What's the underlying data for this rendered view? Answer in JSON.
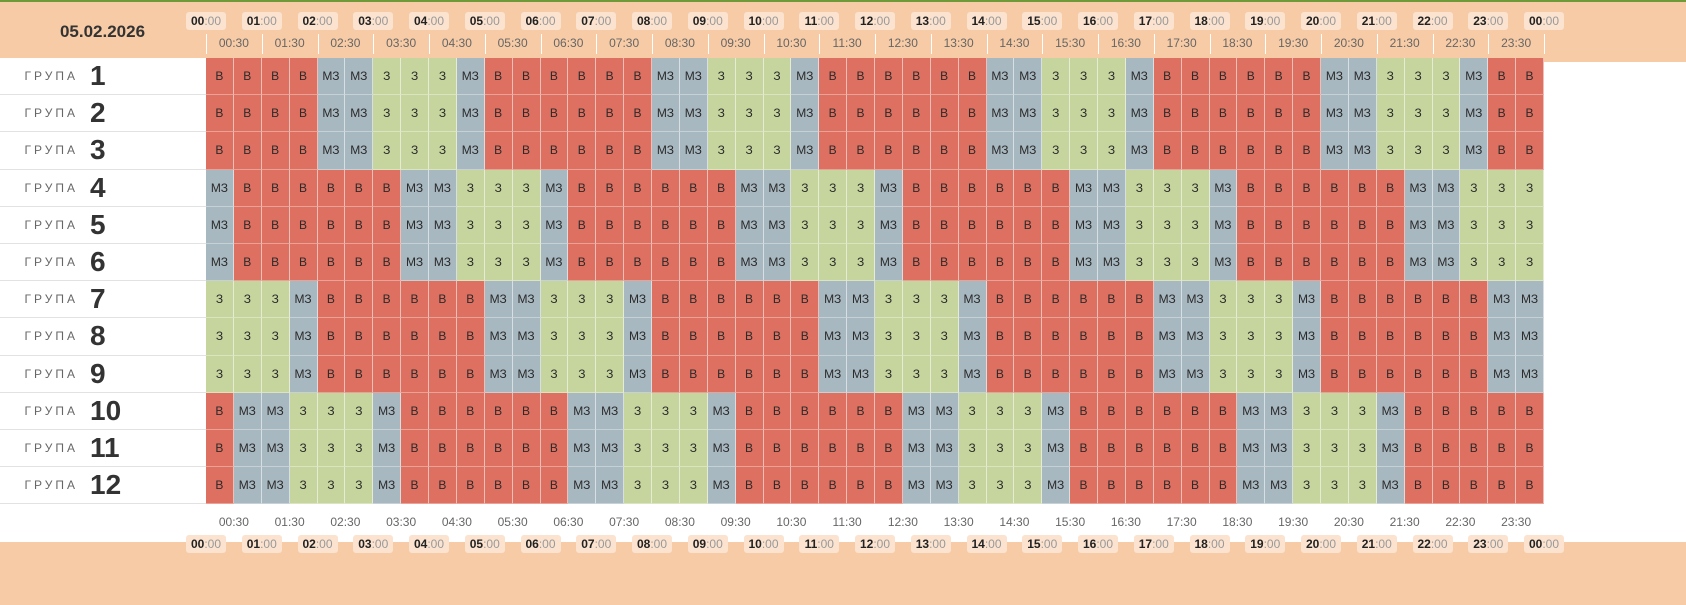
{
  "date": "05.02.2026",
  "hours": [
    "00",
    "01",
    "02",
    "03",
    "04",
    "05",
    "06",
    "07",
    "08",
    "09",
    "10",
    "11",
    "12",
    "13",
    "14",
    "15",
    "16",
    "17",
    "18",
    "19",
    "20",
    "21",
    "22",
    "23",
    "00"
  ],
  "hour_suffix": ":00",
  "half_suffix": ":30",
  "group_word": "ГРУПА",
  "status_labels": {
    "V": "В",
    "MZ": "МЗ",
    "Z": "З"
  },
  "colors": {
    "V": "#dd7060",
    "MZ": "#a8b8c0",
    "Z": "#c6d59e",
    "band": "#f6cba6"
  },
  "groups": [
    {
      "num": "1",
      "pattern": "VVVVMMZZZMVVVVVVMMZZZMVVVVVVMMZZZMVVVVVVMMZZZMVV"
    },
    {
      "num": "2",
      "pattern": "VVVVMMZZZMVVVVVVMMZZZMVVVVVVMMZZZMVVVVVVMMZZZMVV"
    },
    {
      "num": "3",
      "pattern": "VVVVMMZZZMVVVVVVMMZZZMVVVVVVMMZZZMVVVVVVMMZZZMVV"
    },
    {
      "num": "4",
      "pattern": "MVVVVVVMMZZZMVVVVVVMMZZZMVVVVVVMMZZZMVVVVVVMMZZZ"
    },
    {
      "num": "5",
      "pattern": "MVVVVVVMMZZZMVVVVVVMMZZZMVVVVVVMMZZZMVVVVVVMMZZZ"
    },
    {
      "num": "6",
      "pattern": "MVVVVVVMMZZZMVVVVVVMMZZZMVVVVVVMMZZZMVVVVVVMMZZZ"
    },
    {
      "num": "7",
      "pattern": "ZZZMVVVVVVMMZZZMVVVVVVMMZZZMVVVVVVMMZZZMVVVVVVMM"
    },
    {
      "num": "8",
      "pattern": "ZZZMVVVVVVMMZZZMVVVVVVMMZZZMVVVVVVMMZZZMVVVVVVMM"
    },
    {
      "num": "9",
      "pattern": "ZZZMVVVVVVMMZZZMVVVVVVMMZZZMVVVVVVMMZZZMVVVVVVMM"
    },
    {
      "num": "10",
      "pattern": "VMMZZZMVVVVVVMMZZZMVVVVVVMMZZZMVVVVVVMMZZZMVVVVV"
    },
    {
      "num": "11",
      "pattern": "VMMZZZMVVVVVVMMZZZMVVVVVVMMZZZMVVVVVVMMZZZMVVVVV"
    },
    {
      "num": "12",
      "pattern": "VMMZZZMVVVVVVMMZZZMVVVVVVMMZZZMVVVVVVMMZZZMVVVVV"
    }
  ]
}
